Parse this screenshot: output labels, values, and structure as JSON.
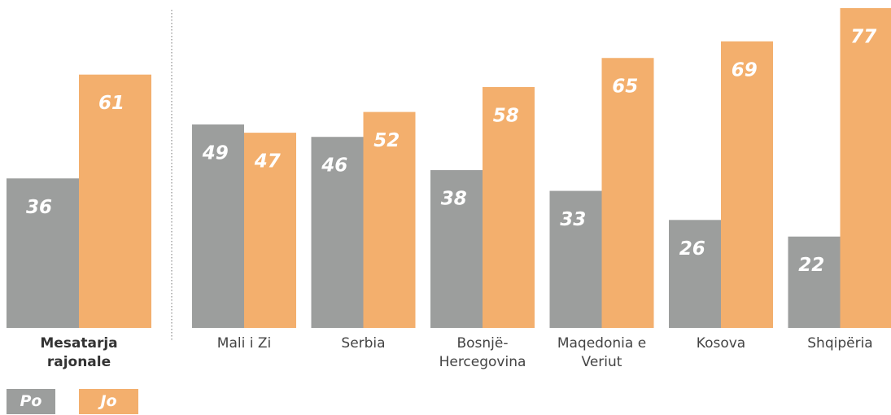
{
  "chart_data": {
    "type": "bar",
    "categories": [
      "Mesatarja rajonale",
      "Mali i Zi",
      "Serbia",
      "Bosnjë-Hercegovina",
      "Maqedonia e Veriut",
      "Kosova",
      "Shqipëria"
    ],
    "series": [
      {
        "name": "Po",
        "color": "#9c9e9d",
        "values": [
          36,
          49,
          46,
          38,
          33,
          26,
          22
        ]
      },
      {
        "name": "Jo",
        "color": "#f3af6d",
        "values": [
          61,
          47,
          52,
          58,
          65,
          69,
          77
        ]
      }
    ],
    "ylim": [
      0,
      77
    ],
    "legend": "bottom-left"
  }
}
